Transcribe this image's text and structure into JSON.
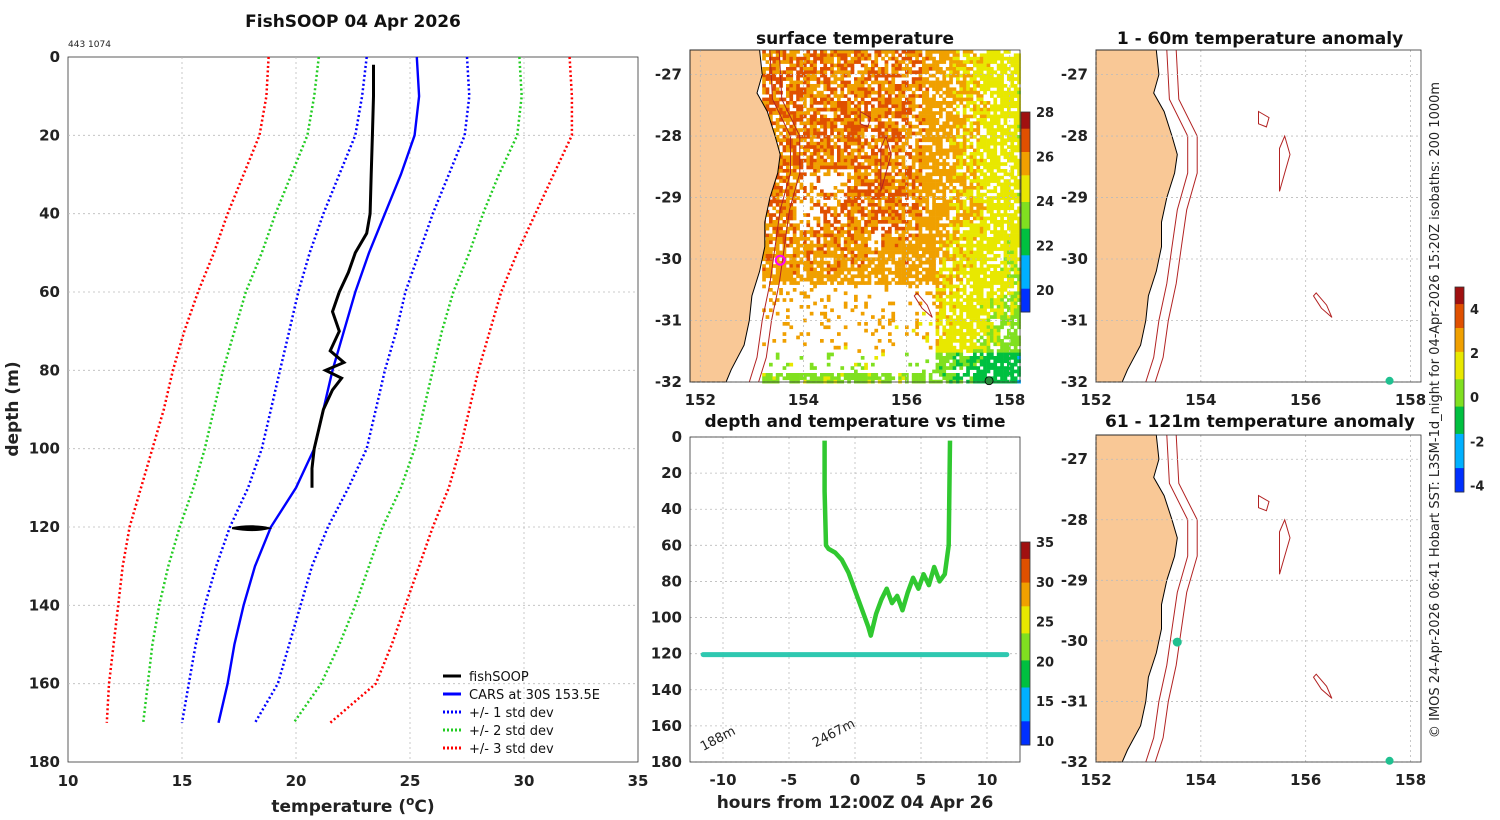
{
  "page": {
    "title": "FishSOOP 04 Apr 2026",
    "id_label": "443 1074",
    "side_credit": "© IMOS 24-Apr-2026 06:41 Hobart SST: L3SM-1d_night for 04-Apr-2026 15:20Z isobaths: 200  1000m"
  },
  "chart_data": [
    {
      "type": "line",
      "id": "profile",
      "xlabel": "temperature (°C)",
      "xlabel_main": "temperature (",
      "xlabel_sup": "o",
      "xlabel_end": "C)",
      "ylabel": "depth (m)",
      "xlim": [
        10,
        35
      ],
      "ylim": [
        0,
        180
      ],
      "xticks": [
        "10",
        "15",
        "20",
        "25",
        "30",
        "35"
      ],
      "yticks": [
        "0",
        "20",
        "40",
        "60",
        "80",
        "100",
        "120",
        "140",
        "160",
        "180"
      ],
      "series": [
        {
          "name": "CARS at 30S 153.5E",
          "key": "cars",
          "color": "#0000ff",
          "dash": false,
          "depth": [
            0,
            10,
            20,
            30,
            40,
            50,
            60,
            70,
            80,
            90,
            100,
            110,
            120,
            130,
            140,
            150,
            160,
            170
          ],
          "temp": [
            25.3,
            25.4,
            25.2,
            24.6,
            23.9,
            23.2,
            22.6,
            22.1,
            21.6,
            21.2,
            20.8,
            20.0,
            18.9,
            18.2,
            17.7,
            17.3,
            17.0,
            16.6
          ]
        },
        {
          "name": "+/- 1 std dev",
          "key": "sd1",
          "color": "#0000ff",
          "dash": true,
          "depth": [
            0,
            10,
            20,
            30,
            40,
            50,
            60,
            70,
            80,
            90,
            100,
            110,
            120,
            130,
            140,
            150,
            160,
            170
          ],
          "lower": [
            23.1,
            22.9,
            22.6,
            21.9,
            21.2,
            20.6,
            20.1,
            19.7,
            19.3,
            18.9,
            18.5,
            17.9,
            17.1,
            16.5,
            16.0,
            15.6,
            15.3,
            15.0
          ],
          "upper": [
            27.5,
            27.6,
            27.4,
            26.7,
            26.0,
            25.4,
            24.8,
            24.4,
            23.9,
            23.5,
            23.1,
            22.3,
            21.4,
            20.7,
            20.2,
            19.7,
            19.2,
            18.2
          ]
        },
        {
          "name": "+/- 2 std dev",
          "key": "sd2",
          "color": "#22cc22",
          "dash": true,
          "depth": [
            0,
            10,
            20,
            30,
            40,
            50,
            60,
            70,
            80,
            90,
            100,
            110,
            120,
            130,
            140,
            150,
            160,
            170
          ],
          "lower": [
            21.0,
            20.8,
            20.5,
            19.8,
            19.1,
            18.5,
            17.8,
            17.3,
            16.8,
            16.4,
            16.0,
            15.5,
            14.9,
            14.4,
            14.0,
            13.7,
            13.5,
            13.3
          ],
          "upper": [
            29.8,
            29.9,
            29.7,
            28.9,
            28.2,
            27.6,
            26.9,
            26.4,
            26.0,
            25.6,
            25.2,
            24.6,
            23.8,
            23.2,
            22.6,
            21.9,
            21.1,
            19.9
          ]
        },
        {
          "name": "+/- 3 std dev",
          "key": "sd3",
          "color": "#ff0000",
          "dash": true,
          "depth": [
            0,
            10,
            20,
            30,
            40,
            50,
            60,
            70,
            80,
            90,
            100,
            110,
            120,
            130,
            140,
            150,
            160,
            170
          ],
          "lower": [
            18.8,
            18.7,
            18.4,
            17.7,
            17.0,
            16.4,
            15.7,
            15.1,
            14.6,
            14.2,
            13.7,
            13.2,
            12.7,
            12.4,
            12.2,
            12.0,
            11.8,
            11.7
          ],
          "upper": [
            32.0,
            32.1,
            32.1,
            31.3,
            30.5,
            29.7,
            29.0,
            28.5,
            28.0,
            27.6,
            27.2,
            26.7,
            26.0,
            25.4,
            24.8,
            24.2,
            23.5,
            21.5
          ]
        },
        {
          "name": "fishSOOP",
          "key": "fishsoop",
          "color": "#000000",
          "dash": false,
          "depth": [
            2,
            10,
            20,
            30,
            40,
            45,
            50,
            55,
            60,
            65,
            70,
            75,
            78,
            80,
            82,
            85,
            90,
            95,
            100,
            105,
            110
          ],
          "temp": [
            23.4,
            23.4,
            23.35,
            23.3,
            23.25,
            23.1,
            22.6,
            22.3,
            21.9,
            21.6,
            21.9,
            21.5,
            22.1,
            21.3,
            22.0,
            21.6,
            21.2,
            21.0,
            20.8,
            20.7,
            20.7
          ]
        }
      ],
      "legend_position": "lower-right"
    },
    {
      "type": "heatmap",
      "id": "sst_map",
      "title": "surface temperature",
      "xticks": [
        "152",
        "154",
        "156",
        "158"
      ],
      "yticks": [
        "-27",
        "-28",
        "-29",
        "-30",
        "-31",
        "-32"
      ],
      "xlim": [
        151.8,
        158.2
      ],
      "ylim": [
        -32,
        -26.6
      ],
      "colorbar": {
        "min": 19,
        "max": 28,
        "ticks": [
          "20",
          "22",
          "24",
          "26",
          "28"
        ]
      }
    },
    {
      "type": "scatter",
      "id": "depth_time",
      "title": "depth and temperature vs time",
      "xlabel": "hours from 12:00Z 04 Apr 26",
      "xticks": [
        "-10",
        "-5",
        "0",
        "5",
        "10"
      ],
      "yticks": [
        "0",
        "20",
        "40",
        "60",
        "80",
        "100",
        "120",
        "140",
        "160",
        "180"
      ],
      "xlim": [
        -12.5,
        12.5
      ],
      "ylim": [
        0,
        180
      ],
      "annotations": [
        "188m",
        "2467m"
      ],
      "colorbar": {
        "min": 9.5,
        "max": 35,
        "ticks": [
          "10",
          "15",
          "20",
          "25",
          "30",
          "35"
        ]
      }
    },
    {
      "type": "heatmap",
      "id": "anom_1_60",
      "title": "1 - 60m temperature anomaly",
      "xticks": [
        "152",
        "154",
        "156",
        "158"
      ],
      "yticks": [
        "-27",
        "-28",
        "-29",
        "-30",
        "-31",
        "-32"
      ],
      "xlim": [
        152,
        158.2
      ],
      "ylim": [
        -32,
        -26.6
      ],
      "colorbar": {
        "min": -4.3,
        "max": 5,
        "ticks": [
          "4",
          "2",
          "0",
          "-2",
          "-4"
        ]
      }
    },
    {
      "type": "heatmap",
      "id": "anom_61_121",
      "title": "61 - 121m temperature anomaly",
      "xticks": [
        "152",
        "154",
        "156",
        "158"
      ],
      "yticks": [
        "-27",
        "-28",
        "-29",
        "-30",
        "-31",
        "-32"
      ],
      "xlim": [
        152,
        158.2
      ],
      "ylim": [
        -32,
        -26.6
      ]
    }
  ],
  "legend": [
    {
      "label": "fishSOOP",
      "color": "#000000",
      "dash": false
    },
    {
      "label": "CARS at 30S 153.5E",
      "color": "#0000ff",
      "dash": false
    },
    {
      "label": "+/- 1 std dev",
      "color": "#0000ff",
      "dash": true
    },
    {
      "label": "+/- 2 std dev",
      "color": "#22cc22",
      "dash": true
    },
    {
      "label": "+/- 3 std dev",
      "color": "#ff0000",
      "dash": true
    }
  ],
  "colors": {
    "land": "#f9c896",
    "isobath": "#b22222",
    "frame": "#333333"
  }
}
